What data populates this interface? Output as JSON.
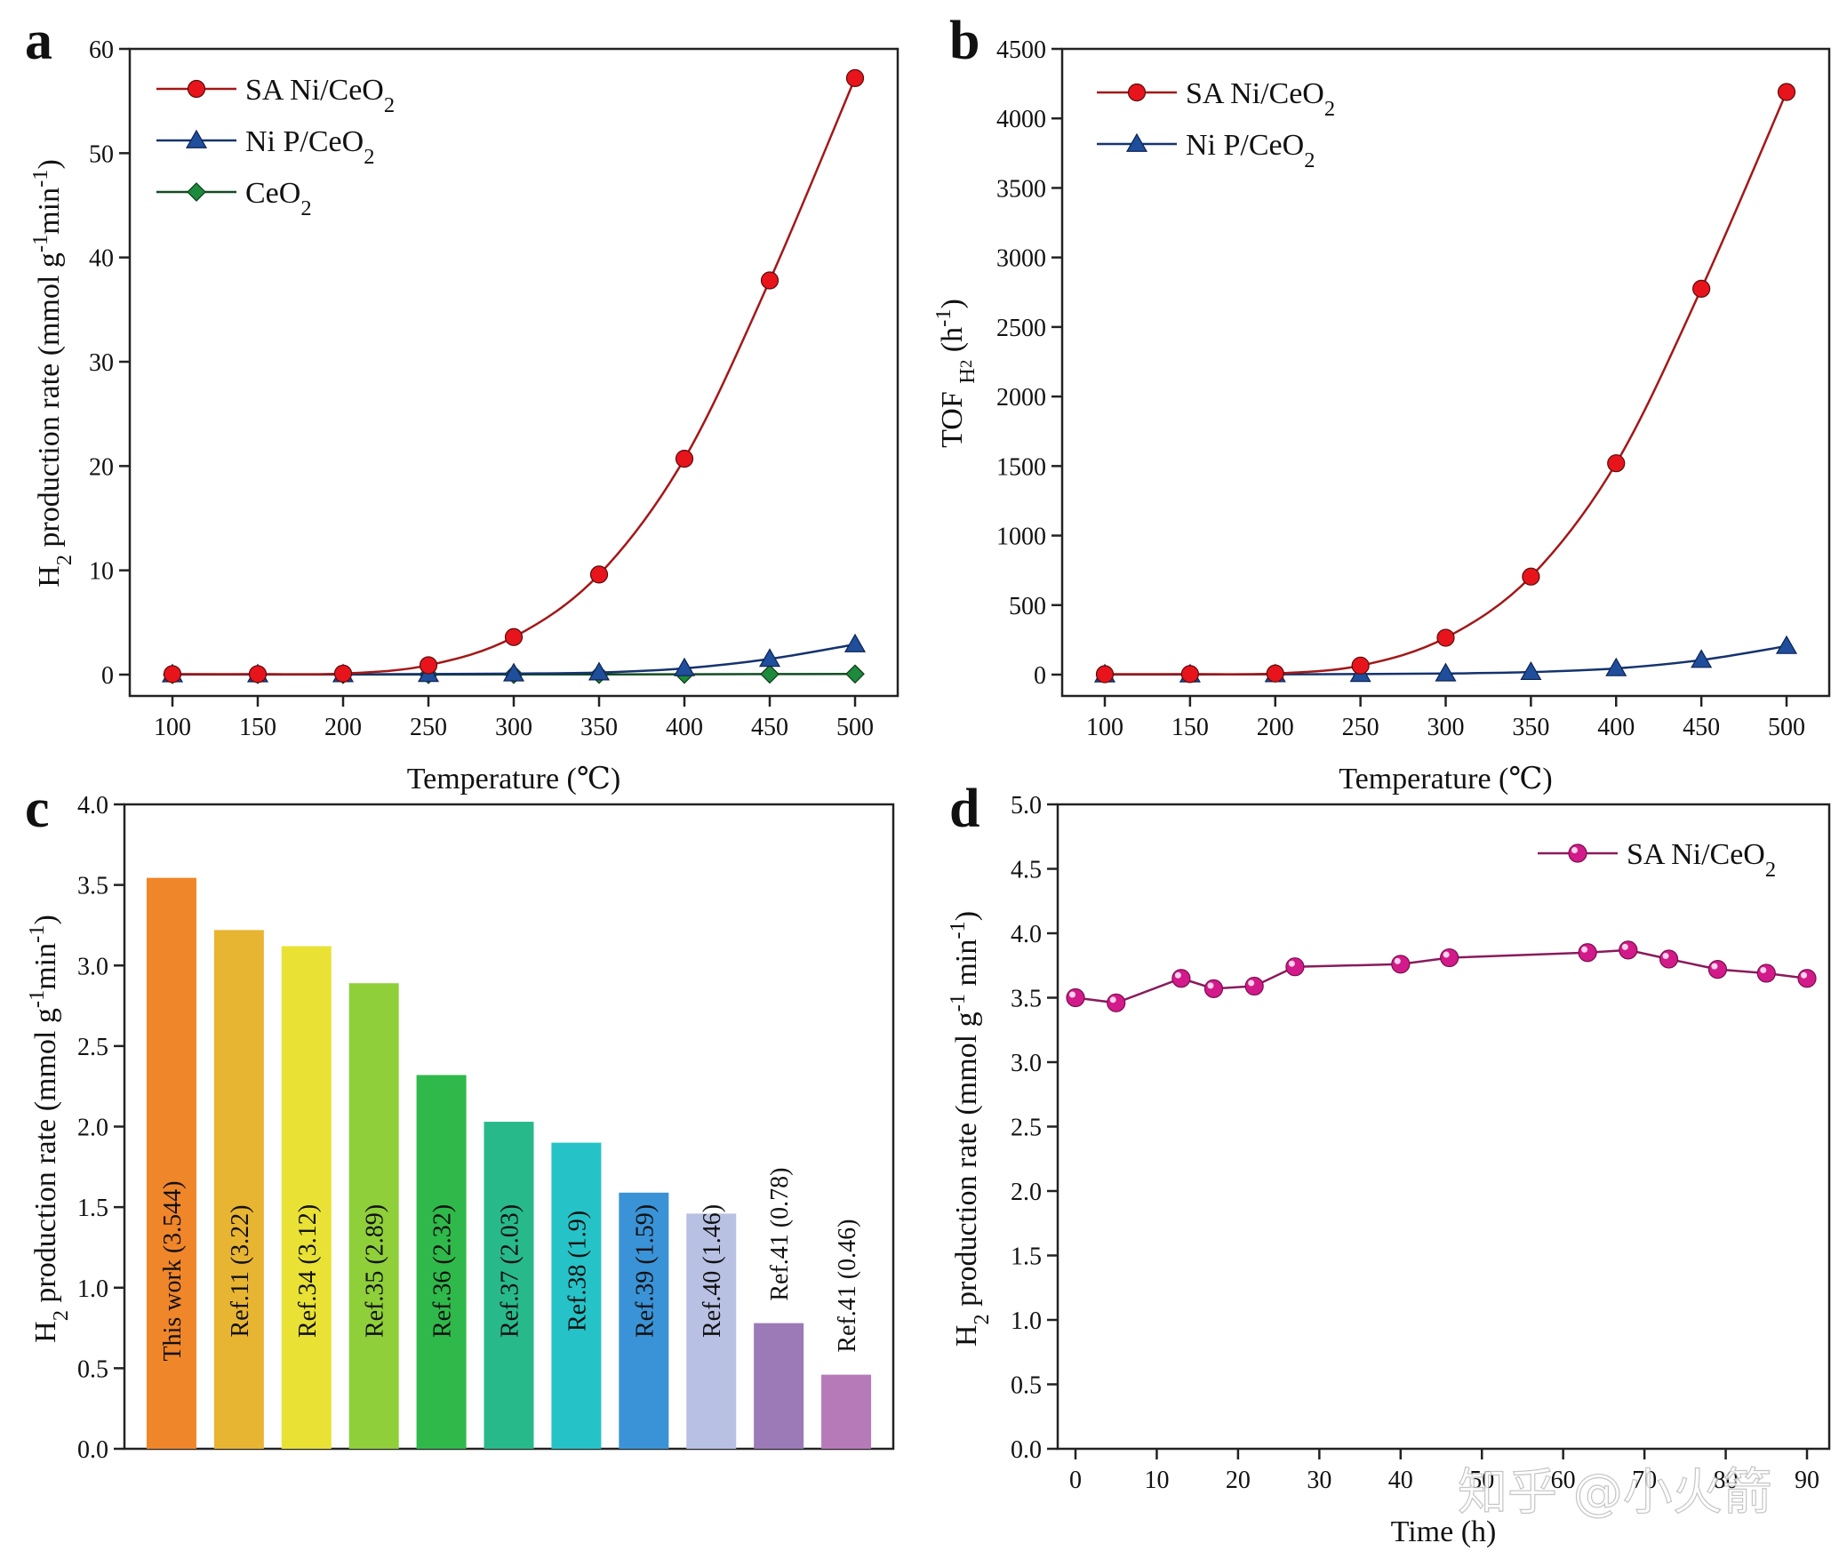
{
  "watermark": "知乎 @小火箭",
  "chart_data": [
    {
      "panel": "a",
      "type": "line",
      "xlabel": "Temperature (℃)",
      "ylabel": "H2 production rate (mmol g-1min-1)",
      "xlim": [
        100,
        500
      ],
      "ylim": [
        0,
        60
      ],
      "xticks": [
        100,
        150,
        200,
        250,
        300,
        350,
        400,
        450,
        500
      ],
      "yticks": [
        0,
        10,
        20,
        30,
        40,
        50,
        60
      ],
      "legend_position": "top-left",
      "x": [
        100,
        150,
        200,
        250,
        300,
        350,
        400,
        450,
        500
      ],
      "series": [
        {
          "name": "SA Ni/CeO2",
          "marker": "circle",
          "color": "#e8141c",
          "line_color": "#a31818",
          "values": [
            0.05,
            0.05,
            0.1,
            0.9,
            3.6,
            9.6,
            20.7,
            37.8,
            57.2
          ]
        },
        {
          "name": "Ni P/CeO2",
          "marker": "triangle",
          "color": "#1f4e9c",
          "line_color": "#16336e",
          "values": [
            0.02,
            0.02,
            0.03,
            0.05,
            0.1,
            0.2,
            0.6,
            1.5,
            2.9
          ]
        },
        {
          "name": "CeO2",
          "marker": "diamond",
          "color": "#1e8a3c",
          "line_color": "#124d22",
          "values": [
            0.01,
            0.01,
            0.01,
            0.01,
            0.02,
            0.02,
            0.03,
            0.05,
            0.06
          ]
        }
      ]
    },
    {
      "panel": "b",
      "type": "line",
      "xlabel": "Temperature (℃)",
      "ylabel": "TOF H2 (h-1)",
      "xlim": [
        100,
        500
      ],
      "ylim": [
        0,
        4500
      ],
      "xticks": [
        100,
        150,
        200,
        250,
        300,
        350,
        400,
        450,
        500
      ],
      "yticks": [
        0,
        500,
        1000,
        1500,
        2000,
        2500,
        3000,
        3500,
        4000,
        4500
      ],
      "legend_position": "top-left",
      "x": [
        100,
        150,
        200,
        250,
        300,
        350,
        400,
        450,
        500
      ],
      "series": [
        {
          "name": "SA Ni/CeO2",
          "marker": "circle",
          "color": "#e8141c",
          "line_color": "#a31818",
          "values": [
            3,
            4,
            8,
            65,
            265,
            705,
            1520,
            2775,
            4190
          ]
        },
        {
          "name": "Ni P/CeO2",
          "marker": "triangle",
          "color": "#1f4e9c",
          "line_color": "#16336e",
          "values": [
            1,
            1,
            2,
            4,
            8,
            18,
            45,
            105,
            205
          ]
        }
      ]
    },
    {
      "panel": "c",
      "type": "bar",
      "xlabel": "",
      "ylabel": "H2 production rate (mmol g-1min-1)",
      "ylim": [
        0,
        4.0
      ],
      "yticks": [
        "0.0",
        "0.5",
        "1.0",
        "1.5",
        "2.0",
        "2.5",
        "3.0",
        "3.5",
        "4.0"
      ],
      "categories": [
        "This work (3.544)",
        "Ref.11 (3.22)",
        "Ref.34 (3.12)",
        "Ref.35 (2.89)",
        "Ref.36 (2.32)",
        "Ref.37 (2.03)",
        "Ref.38 (1.9)",
        "Ref.39 (1.59)",
        "Ref.40 (1.46)",
        "Ref.41 (0.78)",
        "Ref.41 (0.46)"
      ],
      "values": [
        3.544,
        3.22,
        3.12,
        2.89,
        2.32,
        2.03,
        1.9,
        1.59,
        1.46,
        0.78,
        0.46
      ],
      "colors": [
        "#f0862a",
        "#e8b533",
        "#e9e235",
        "#8fcf3a",
        "#2fb94a",
        "#28b98a",
        "#25c3c7",
        "#3a93d6",
        "#b8c1e4",
        "#9c7ab8",
        "#b67ab9"
      ]
    },
    {
      "panel": "d",
      "type": "line",
      "xlabel": "Time (h)",
      "ylabel": "H2 production rate (mmol g-1 min-1)",
      "xlim": [
        0,
        90
      ],
      "ylim": [
        0,
        5.0
      ],
      "xticks": [
        0,
        10,
        20,
        30,
        40,
        50,
        60,
        70,
        80,
        90
      ],
      "yticks": [
        "0.0",
        "0.5",
        "1.0",
        "1.5",
        "2.0",
        "2.5",
        "3.0",
        "3.5",
        "4.0",
        "4.5",
        "5.0"
      ],
      "legend_position": "top-right",
      "series": [
        {
          "name": "SA Ni/CeO2",
          "marker": "circle",
          "color": "#d21a8a",
          "line_color": "#8a1a5c",
          "x": [
            0,
            5,
            13,
            17,
            22,
            27,
            40,
            46,
            63,
            68,
            73,
            79,
            85,
            90
          ],
          "values": [
            3.5,
            3.46,
            3.65,
            3.57,
            3.59,
            3.74,
            3.76,
            3.81,
            3.85,
            3.87,
            3.8,
            3.72,
            3.69,
            3.65
          ]
        }
      ]
    }
  ]
}
